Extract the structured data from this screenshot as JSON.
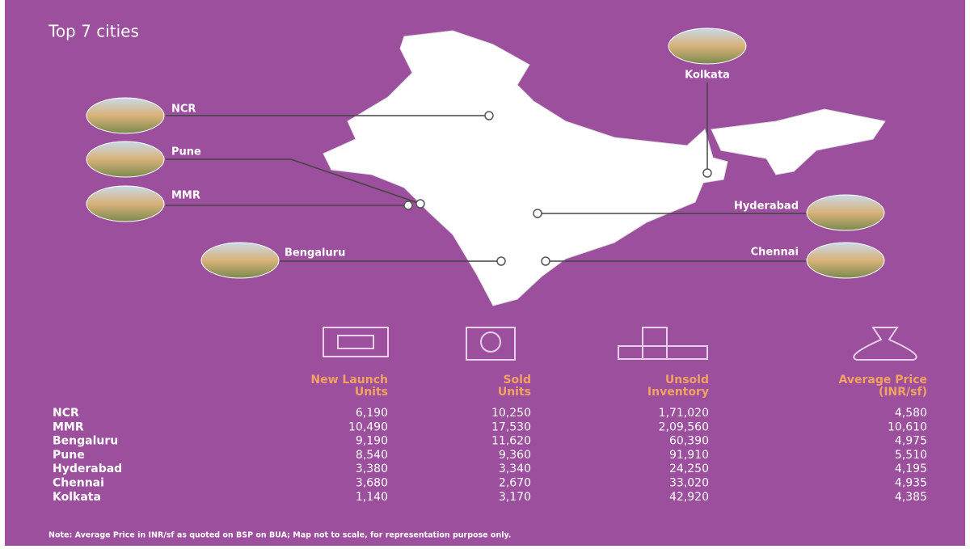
{
  "title": "Top 7 cities",
  "map_labels": [
    "NCR",
    "Pune",
    "MMR",
    "Bengaluru",
    "Kolkata",
    "Hyderabad",
    "Chennai"
  ],
  "table": {
    "columns": [
      [
        "New Launch",
        "Units"
      ],
      [
        "Sold",
        "Units"
      ],
      [
        "Unsold",
        "Inventory"
      ],
      [
        "Average Price",
        "(INR/sf)"
      ]
    ],
    "rows": [
      [
        "NCR",
        "6,190",
        "10,250",
        "1,71,020",
        "4,580"
      ],
      [
        "MMR",
        "10,490",
        "17,530",
        "2,09,560",
        "10,610"
      ],
      [
        "Bengaluru",
        "9,190",
        "11,620",
        "60,390",
        "4,975"
      ],
      [
        "Pune",
        "8,540",
        "9,360",
        "91,910",
        "5,510"
      ],
      [
        "Hyderabad",
        "3,380",
        "3,340",
        "24,250",
        "4,195"
      ],
      [
        "Chennai",
        "3,680",
        "2,670",
        "33,020",
        "4,935"
      ],
      [
        "Kolkata",
        "1,140",
        "3,170",
        "42,920",
        "4,385"
      ]
    ]
  },
  "note": "Note: Average Price in INR/sf as quoted on BSP on BUA; Map not to scale, for representation purpose only."
}
